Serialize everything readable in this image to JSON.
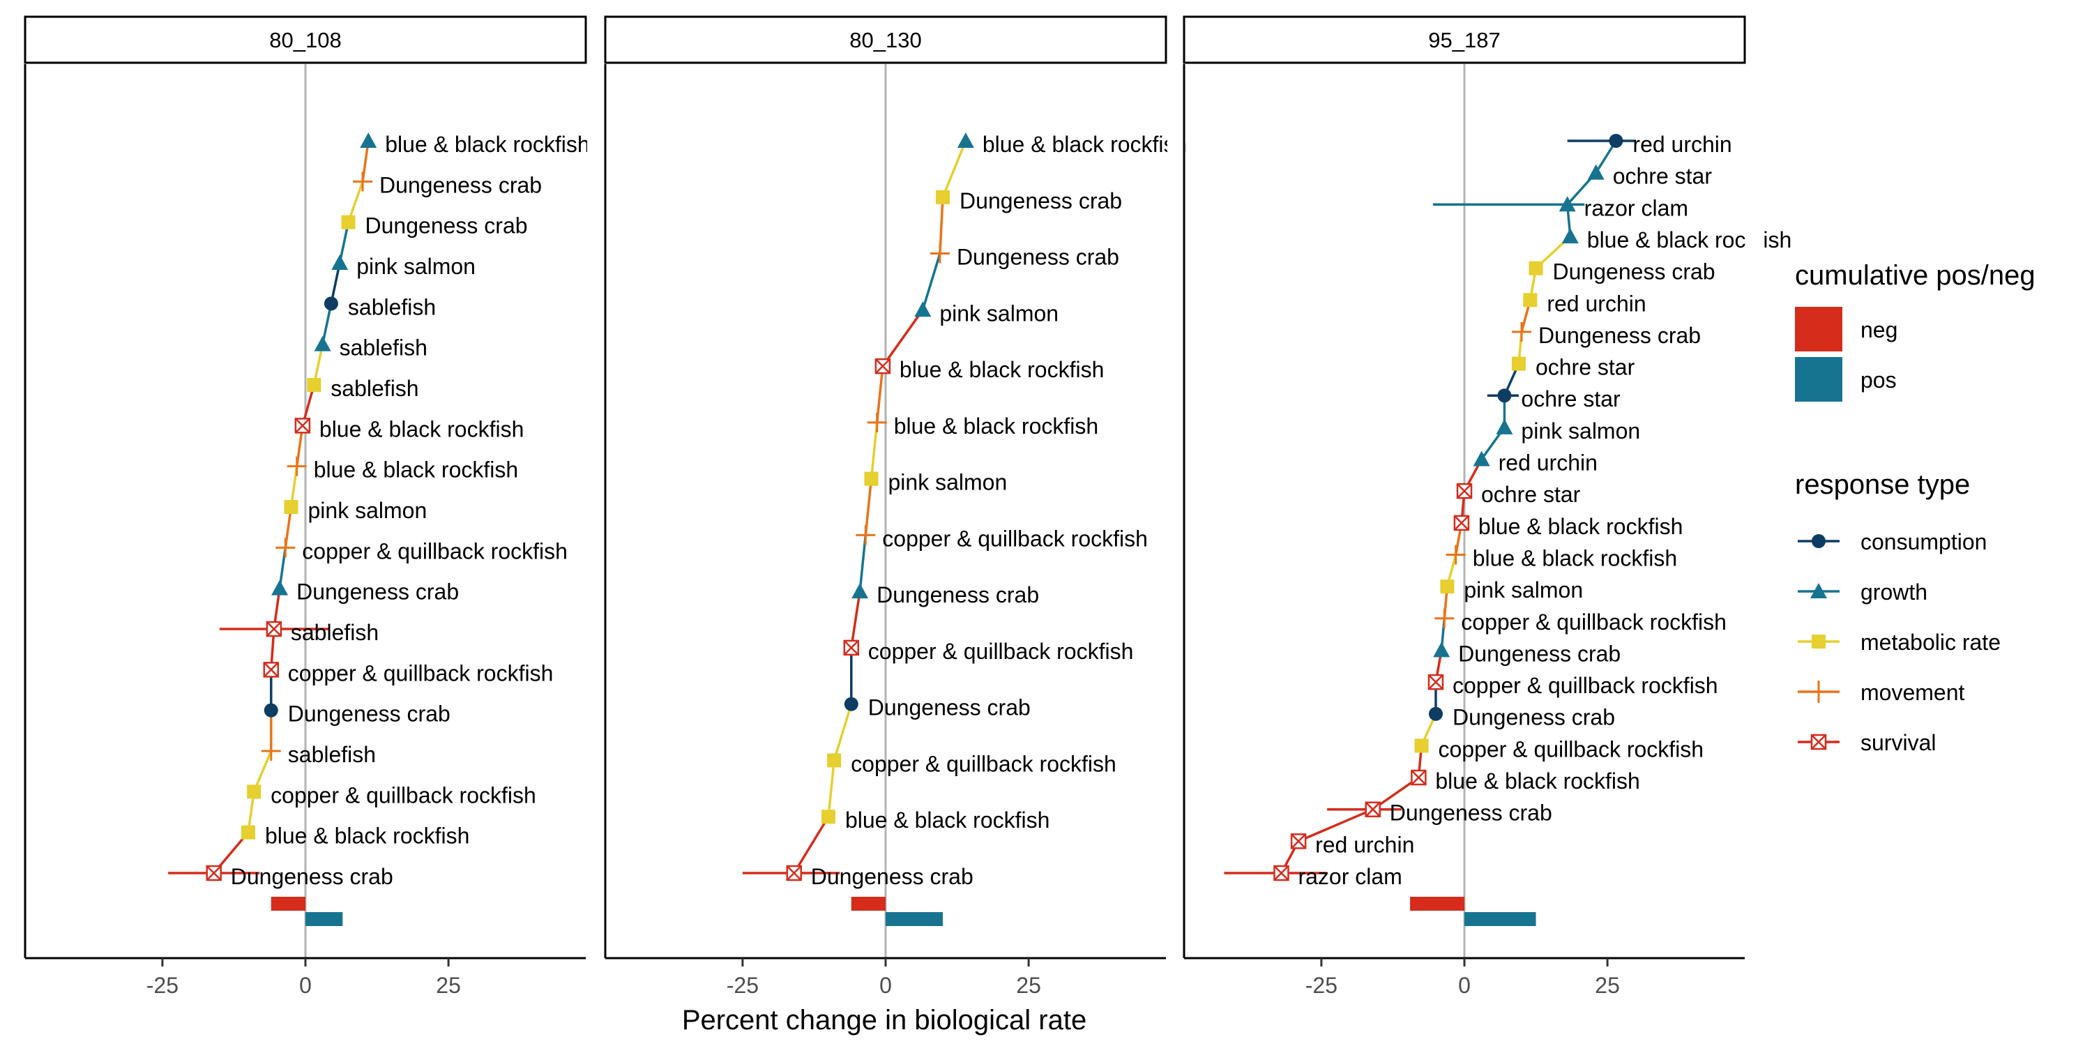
{
  "chart_data": {
    "type": "scatter",
    "xlabel": "Percent change in biological rate",
    "xlim": [
      -49,
      49
    ],
    "xticks": [
      -25,
      0,
      25
    ],
    "xtick_labels": [
      "-25",
      "0",
      "25"
    ],
    "grid": false,
    "legend_position": "right",
    "colors": {
      "consumption": "#0e3d63",
      "growth": "#177491",
      "metabolic rate": "#e6cf2e",
      "movement": "#ea7418",
      "survival": "#d52c1c",
      "neg": "#d52c1c",
      "pos": "#177491",
      "zero_line": "#b3b3b3"
    },
    "legend": {
      "fill_title": "cumulative pos/neg",
      "fill_entries": [
        "neg",
        "pos"
      ],
      "type_title": "response type",
      "type_entries": [
        "consumption",
        "growth",
        "metabolic rate",
        "movement",
        "survival"
      ]
    },
    "panels": [
      {
        "name": "80_108",
        "cumulative": {
          "neg": -6,
          "pos": 6.5
        },
        "points": [
          {
            "label": "blue & black rockfish",
            "type": "growth",
            "x": 11,
            "lo": null,
            "hi": null
          },
          {
            "label": "Dungeness crab",
            "type": "movement",
            "x": 10,
            "lo": null,
            "hi": null
          },
          {
            "label": "Dungeness crab",
            "type": "metabolic rate",
            "x": 7.5,
            "lo": null,
            "hi": null
          },
          {
            "label": "pink salmon",
            "type": "growth",
            "x": 6,
            "lo": null,
            "hi": null
          },
          {
            "label": "sablefish",
            "type": "consumption",
            "x": 4.5,
            "lo": null,
            "hi": null
          },
          {
            "label": "sablefish",
            "type": "growth",
            "x": 3,
            "lo": null,
            "hi": null
          },
          {
            "label": "sablefish",
            "type": "metabolic rate",
            "x": 1.5,
            "lo": null,
            "hi": null
          },
          {
            "label": "blue & black rockfish",
            "type": "survival",
            "x": -0.5,
            "lo": null,
            "hi": null
          },
          {
            "label": "blue & black rockfish",
            "type": "movement",
            "x": -1.5,
            "lo": null,
            "hi": null
          },
          {
            "label": "pink salmon",
            "type": "metabolic rate",
            "x": -2.5,
            "lo": null,
            "hi": null
          },
          {
            "label": "copper & quillback rockfish",
            "type": "movement",
            "x": -3.5,
            "lo": null,
            "hi": null
          },
          {
            "label": "Dungeness crab",
            "type": "growth",
            "x": -4.5,
            "lo": null,
            "hi": null
          },
          {
            "label": "sablefish",
            "type": "survival",
            "x": -5.5,
            "lo": -15,
            "hi": 4
          },
          {
            "label": "copper & quillback rockfish",
            "type": "survival",
            "x": -6,
            "lo": null,
            "hi": null
          },
          {
            "label": "Dungeness crab",
            "type": "consumption",
            "x": -6,
            "lo": null,
            "hi": null
          },
          {
            "label": "sablefish",
            "type": "movement",
            "x": -6,
            "lo": null,
            "hi": null
          },
          {
            "label": "copper & quillback rockfish",
            "type": "metabolic rate",
            "x": -9,
            "lo": null,
            "hi": null
          },
          {
            "label": "blue & black rockfish",
            "type": "metabolic rate",
            "x": -10,
            "lo": null,
            "hi": null
          },
          {
            "label": "Dungeness crab",
            "type": "survival",
            "x": -16,
            "lo": -24,
            "hi": -8
          }
        ]
      },
      {
        "name": "80_130",
        "cumulative": {
          "neg": -6,
          "pos": 10
        },
        "points": [
          {
            "label": "blue & black rockfish",
            "type": "growth",
            "x": 14,
            "lo": null,
            "hi": null
          },
          {
            "label": "Dungeness crab",
            "type": "metabolic rate",
            "x": 10,
            "lo": null,
            "hi": null
          },
          {
            "label": "Dungeness crab",
            "type": "movement",
            "x": 9.5,
            "lo": null,
            "hi": null
          },
          {
            "label": "pink salmon",
            "type": "growth",
            "x": 6.5,
            "lo": null,
            "hi": null
          },
          {
            "label": "blue & black rockfish",
            "type": "survival",
            "x": -0.5,
            "lo": null,
            "hi": null
          },
          {
            "label": "blue & black rockfish",
            "type": "movement",
            "x": -1.5,
            "lo": null,
            "hi": null
          },
          {
            "label": "pink salmon",
            "type": "metabolic rate",
            "x": -2.5,
            "lo": null,
            "hi": null
          },
          {
            "label": "copper & quillback rockfish",
            "type": "movement",
            "x": -3.5,
            "lo": null,
            "hi": null
          },
          {
            "label": "Dungeness crab",
            "type": "growth",
            "x": -4.5,
            "lo": null,
            "hi": null
          },
          {
            "label": "copper & quillback rockfish",
            "type": "survival",
            "x": -6,
            "lo": null,
            "hi": null
          },
          {
            "label": "Dungeness crab",
            "type": "consumption",
            "x": -6,
            "lo": null,
            "hi": null
          },
          {
            "label": "copper & quillback rockfish",
            "type": "metabolic rate",
            "x": -9,
            "lo": null,
            "hi": null
          },
          {
            "label": "blue & black rockfish",
            "type": "metabolic rate",
            "x": -10,
            "lo": null,
            "hi": null
          },
          {
            "label": "Dungeness crab",
            "type": "survival",
            "x": -16,
            "lo": -25,
            "hi": -8
          }
        ]
      },
      {
        "name": "95_187",
        "cumulative": {
          "neg": -9.5,
          "pos": 12.5
        },
        "points": [
          {
            "label": "red urchin",
            "type": "consumption",
            "x": 26.5,
            "lo": 18,
            "hi": 30
          },
          {
            "label": "ochre star",
            "type": "growth",
            "x": 23,
            "lo": null,
            "hi": null
          },
          {
            "label": "razor clam",
            "type": "growth",
            "x": 18,
            "lo": -5.5,
            "hi": 21
          },
          {
            "label": "blue & black rockfish",
            "type": "growth",
            "x": 18.5,
            "lo": null,
            "hi": null
          },
          {
            "label": "Dungeness crab",
            "type": "metabolic rate",
            "x": 12.5,
            "lo": null,
            "hi": null
          },
          {
            "label": "red urchin",
            "type": "metabolic rate",
            "x": 11.5,
            "lo": null,
            "hi": null
          },
          {
            "label": "Dungeness crab",
            "type": "movement",
            "x": 10,
            "lo": null,
            "hi": null
          },
          {
            "label": "ochre star",
            "type": "metabolic rate",
            "x": 9.5,
            "lo": null,
            "hi": null
          },
          {
            "label": "ochre star",
            "type": "consumption",
            "x": 7,
            "lo": 4,
            "hi": 9.5
          },
          {
            "label": "pink salmon",
            "type": "growth",
            "x": 7,
            "lo": null,
            "hi": null
          },
          {
            "label": "red urchin",
            "type": "growth",
            "x": 3,
            "lo": null,
            "hi": null
          },
          {
            "label": "ochre star",
            "type": "survival",
            "x": 0,
            "lo": null,
            "hi": null
          },
          {
            "label": "blue & black rockfish",
            "type": "survival",
            "x": -0.5,
            "lo": null,
            "hi": null
          },
          {
            "label": "blue & black rockfish",
            "type": "movement",
            "x": -1.5,
            "lo": null,
            "hi": null
          },
          {
            "label": "pink salmon",
            "type": "metabolic rate",
            "x": -3,
            "lo": null,
            "hi": null
          },
          {
            "label": "copper & quillback rockfish",
            "type": "movement",
            "x": -3.5,
            "lo": null,
            "hi": null
          },
          {
            "label": "Dungeness crab",
            "type": "growth",
            "x": -4,
            "lo": null,
            "hi": null
          },
          {
            "label": "copper & quillback rockfish",
            "type": "survival",
            "x": -5,
            "lo": null,
            "hi": null
          },
          {
            "label": "Dungeness crab",
            "type": "consumption",
            "x": -5,
            "lo": null,
            "hi": null
          },
          {
            "label": "copper & quillback rockfish",
            "type": "metabolic rate",
            "x": -7.5,
            "lo": null,
            "hi": null
          },
          {
            "label": "blue & black rockfish",
            "type": "survival",
            "x": -8,
            "lo": null,
            "hi": null
          },
          {
            "label": "Dungeness crab",
            "type": "survival",
            "x": -16,
            "lo": -24,
            "hi": -11
          },
          {
            "label": "red urchin",
            "type": "survival",
            "x": -29,
            "lo": null,
            "hi": null
          },
          {
            "label": "razor clam",
            "type": "survival",
            "x": -32,
            "lo": -42,
            "hi": -24
          }
        ]
      }
    ]
  }
}
